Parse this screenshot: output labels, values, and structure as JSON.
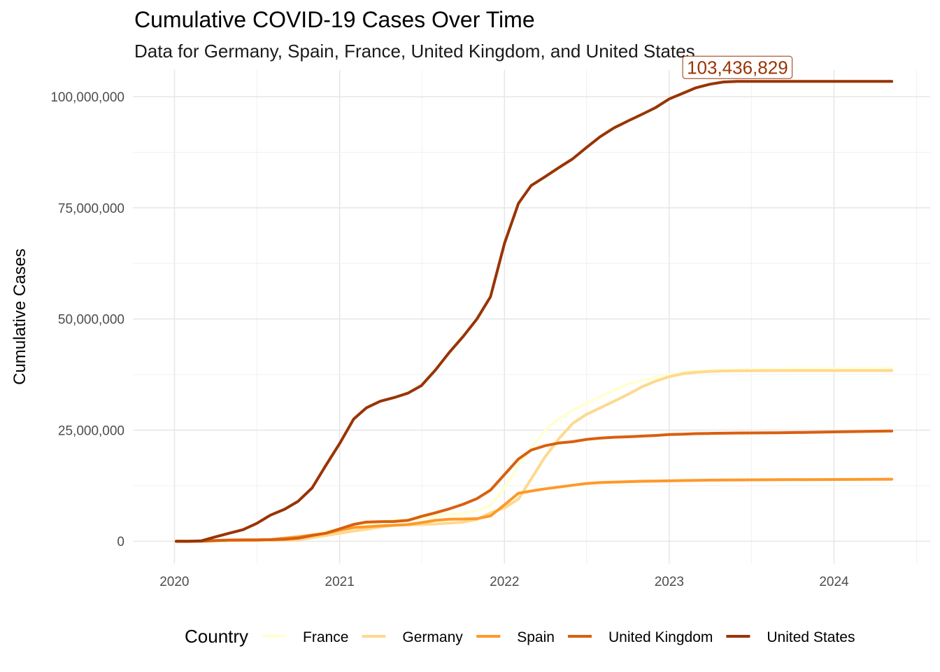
{
  "title": "Cumulative COVID-19 Cases Over Time",
  "subtitle": "Data for Germany, Spain, France, United Kingdom, and United States",
  "chart_data": {
    "type": "line",
    "title": "Cumulative COVID-19 Cases Over Time",
    "subtitle": "Data for Germany, Spain, France, United Kingdom, and United States",
    "xlabel": "",
    "ylabel": "Cumulative Cases",
    "x_ticks": [
      "2020",
      "2021",
      "2022",
      "2023",
      "2024"
    ],
    "y_ticks": [
      "0",
      "25,000,000",
      "50,000,000",
      "75,000,000",
      "100,000,000"
    ],
    "xlim": [
      "2019-10-01",
      "2024-08-01"
    ],
    "ylim": [
      -5000000,
      106000000
    ],
    "grid": true,
    "legend_title": "Country",
    "legend_position": "bottom",
    "x": [
      "2020-01-05",
      "2020-02-01",
      "2020-03-01",
      "2020-04-01",
      "2020-05-01",
      "2020-06-01",
      "2020-07-01",
      "2020-08-01",
      "2020-09-01",
      "2020-10-01",
      "2020-11-01",
      "2020-12-01",
      "2021-01-01",
      "2021-02-01",
      "2021-03-01",
      "2021-04-01",
      "2021-05-01",
      "2021-06-01",
      "2021-07-01",
      "2021-08-01",
      "2021-09-01",
      "2021-10-01",
      "2021-11-01",
      "2021-12-01",
      "2022-01-01",
      "2022-02-01",
      "2022-03-01",
      "2022-04-01",
      "2022-05-01",
      "2022-06-01",
      "2022-07-01",
      "2022-08-01",
      "2022-09-01",
      "2022-10-01",
      "2022-11-01",
      "2022-12-01",
      "2023-01-01",
      "2023-02-01",
      "2023-03-01",
      "2023-04-01",
      "2023-05-01",
      "2023-06-01",
      "2023-09-01",
      "2024-01-01",
      "2024-05-08"
    ],
    "series": [
      {
        "name": "France",
        "color": "#FFFFD4",
        "values": [
          0,
          0,
          50000,
          100000,
          150000,
          170000,
          200000,
          300000,
          400000,
          900000,
          1500000,
          2200000,
          2800000,
          3300000,
          3800000,
          4400000,
          4800000,
          4900000,
          5100000,
          5700000,
          6000000,
          6300000,
          6900000,
          8000000,
          12000000,
          17000000,
          21000000,
          25000000,
          27500000,
          29500000,
          31000000,
          32500000,
          34000000,
          35300000,
          36200000,
          36800000,
          37500000,
          38000000,
          38300000,
          38400000,
          38500000,
          38600000,
          38700000,
          38800000,
          38900000
        ]
      },
      {
        "name": "Germany",
        "color": "#FED98E",
        "values": [
          0,
          0,
          5000,
          100000,
          150000,
          180000,
          200000,
          230000,
          260000,
          320000,
          800000,
          1300000,
          1800000,
          2300000,
          2700000,
          3200000,
          3600000,
          3700000,
          3750000,
          3900000,
          4100000,
          4300000,
          4900000,
          6400000,
          7500000,
          9500000,
          14000000,
          19000000,
          23000000,
          26500000,
          28500000,
          30000000,
          31500000,
          33000000,
          34700000,
          36000000,
          37000000,
          37700000,
          38000000,
          38200000,
          38300000,
          38350000,
          38400000,
          38400000,
          38400000
        ]
      },
      {
        "name": "Spain",
        "color": "#FE9929",
        "values": [
          0,
          0,
          50000,
          150000,
          220000,
          240000,
          260000,
          400000,
          700000,
          1000000,
          1400000,
          1800000,
          2500000,
          3100000,
          3250000,
          3450000,
          3600000,
          3750000,
          4200000,
          4700000,
          4950000,
          5000000,
          5100000,
          5700000,
          8200000,
          10800000,
          11300000,
          11800000,
          12200000,
          12600000,
          13000000,
          13200000,
          13300000,
          13400000,
          13500000,
          13550000,
          13600000,
          13650000,
          13700000,
          13750000,
          13780000,
          13800000,
          13850000,
          13900000,
          13950000
        ]
      },
      {
        "name": "United Kingdom",
        "color": "#D95F0E",
        "values": [
          0,
          0,
          30000,
          170000,
          270000,
          300000,
          320000,
          350000,
          450000,
          700000,
          1300000,
          1800000,
          2800000,
          3800000,
          4300000,
          4400000,
          4450000,
          4700000,
          5600000,
          6400000,
          7300000,
          8300000,
          9600000,
          11500000,
          15000000,
          18500000,
          20500000,
          21500000,
          22100000,
          22400000,
          22900000,
          23200000,
          23400000,
          23500000,
          23650000,
          23800000,
          24000000,
          24100000,
          24200000,
          24250000,
          24300000,
          24350000,
          24400000,
          24600000,
          24800000
        ]
      },
      {
        "name": "United States",
        "color": "#993404",
        "values": [
          0,
          0,
          100000,
          1000000,
          1800000,
          2600000,
          4000000,
          5900000,
          7200000,
          9000000,
          12000000,
          17000000,
          22000000,
          27500000,
          30000000,
          31500000,
          32300000,
          33300000,
          35000000,
          38500000,
          42500000,
          46000000,
          50000000,
          55000000,
          67000000,
          76000000,
          80000000,
          82000000,
          84000000,
          86000000,
          88500000,
          91000000,
          93000000,
          94500000,
          96000000,
          97500000,
          99500000,
          100800000,
          102000000,
          102800000,
          103300000,
          103436829,
          103436829,
          103436829,
          103436829
        ]
      }
    ],
    "annotations": [
      {
        "text": "103,436,829",
        "x": "2023-06-01",
        "y": 103436829,
        "series": "United States"
      }
    ]
  }
}
